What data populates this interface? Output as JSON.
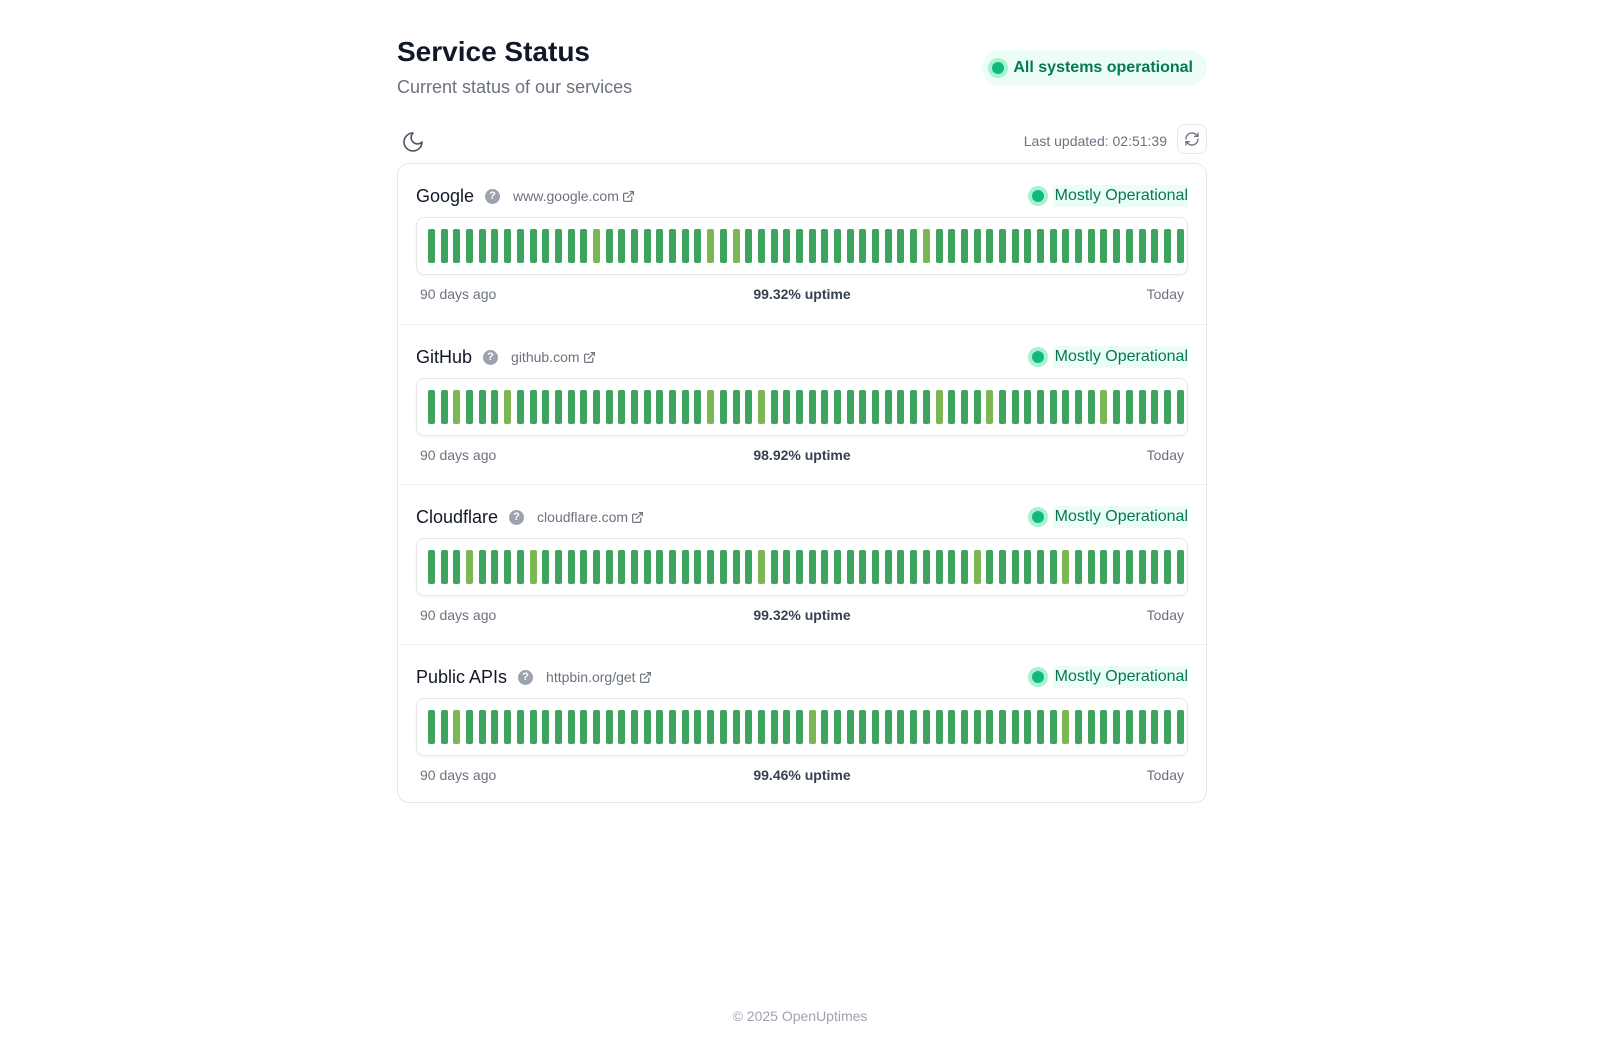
{
  "header": {
    "title": "Service Status",
    "subtitle": "Current status of our services",
    "overall_status": "All systems operational"
  },
  "toolbar": {
    "theme_icon": "moon-icon",
    "last_updated": "Last updated: 02:51:39",
    "refresh_icon": "refresh-icon"
  },
  "colors": {
    "up": "#3da35d",
    "partial": "#7cb655",
    "accent": "#10b981",
    "status_text": "#047857"
  },
  "services": [
    {
      "name": "Google",
      "url": "www.google.com",
      "status": "Mostly Operational",
      "left_label": "90 days ago",
      "uptime": "99.32% uptime",
      "right_label": "Today",
      "partial_days": [
        13,
        22,
        24,
        39
      ]
    },
    {
      "name": "GitHub",
      "url": "github.com",
      "status": "Mostly Operational",
      "left_label": "90 days ago",
      "uptime": "98.92% uptime",
      "right_label": "Today",
      "partial_days": [
        2,
        6,
        22,
        26,
        40,
        44,
        53
      ]
    },
    {
      "name": "Cloudflare",
      "url": "cloudflare.com",
      "status": "Mostly Operational",
      "left_label": "90 days ago",
      "uptime": "99.32% uptime",
      "right_label": "Today",
      "partial_days": [
        3,
        8,
        26,
        43,
        50
      ]
    },
    {
      "name": "Public APIs",
      "url": "httpbin.org/get",
      "status": "Mostly Operational",
      "left_label": "90 days ago",
      "uptime": "99.46% uptime",
      "right_label": "Today",
      "partial_days": [
        2,
        30,
        50
      ]
    }
  ],
  "bar_count": 60,
  "footer": "© 2025 OpenUptimes"
}
